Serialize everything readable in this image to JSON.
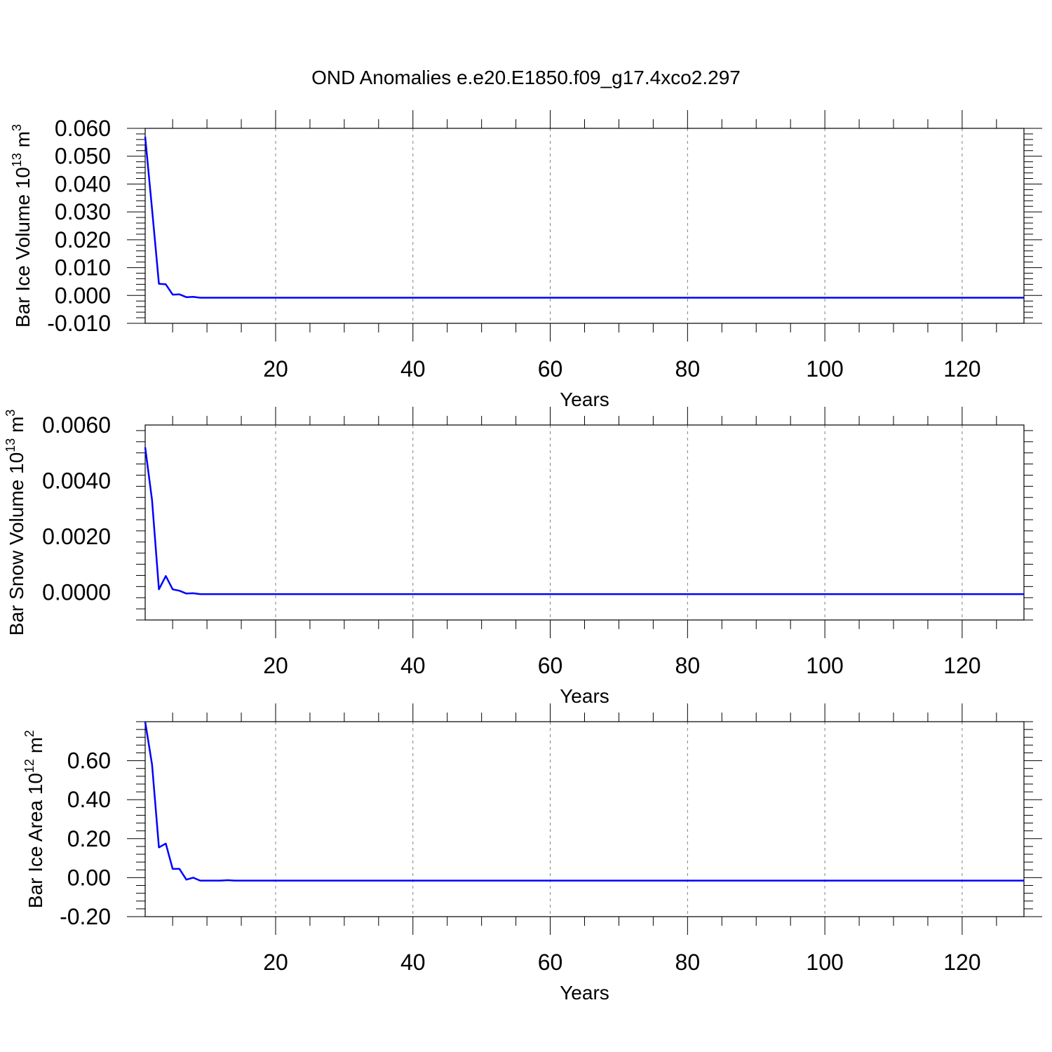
{
  "figure": {
    "title": "OND Anomalies e.e20.E1850.f09_g17.4xco2.297"
  },
  "chart_data": [
    {
      "type": "line",
      "title": "",
      "xlabel": "Years",
      "ylabel": {
        "main": "Bar Ice Volume 10",
        "sup": "13",
        "unit": " m",
        "unit_sup": "3"
      },
      "xlim": [
        1,
        129
      ],
      "ylim": [
        -0.01,
        0.06
      ],
      "xticks": [
        20,
        40,
        60,
        80,
        100,
        120
      ],
      "yticks": [
        -0.01,
        0.0,
        0.01,
        0.02,
        0.03,
        0.04,
        0.05,
        0.06
      ],
      "ytick_labels": [
        "-0.010",
        "0.000",
        "0.010",
        "0.020",
        "0.030",
        "0.040",
        "0.050",
        "0.060"
      ],
      "grid": "x-dashed",
      "color": "#0000ff",
      "series": [
        {
          "x": [
            1,
            2,
            3,
            4,
            5,
            6,
            7,
            8,
            9,
            10,
            11,
            12,
            13,
            129
          ],
          "values": [
            0.057,
            0.031,
            0.0042,
            0.004,
            0.0003,
            0.0004,
            -0.0006,
            -0.0005,
            -0.0008,
            -0.0008,
            -0.0008,
            -0.0008,
            -0.0008,
            -0.0008
          ]
        }
      ]
    },
    {
      "type": "line",
      "title": "",
      "xlabel": "Years",
      "ylabel": {
        "main": "Bar Snow Volume 10",
        "sup": "13",
        "unit": " m",
        "unit_sup": "3"
      },
      "xlim": [
        1,
        129
      ],
      "ylim": [
        -0.001,
        0.006
      ],
      "xticks": [
        20,
        40,
        60,
        80,
        100,
        120
      ],
      "yticks": [
        0.0,
        0.002,
        0.004,
        0.006
      ],
      "ytick_labels": [
        "0.0000",
        "0.0020",
        "0.0040",
        "0.0060"
      ],
      "grid": "x-dashed",
      "color": "#0000ff",
      "series": [
        {
          "x": [
            1,
            2,
            3,
            4,
            5,
            6,
            7,
            8,
            9,
            10,
            11,
            129
          ],
          "values": [
            0.0052,
            0.0033,
            0.0001,
            0.00058,
            0.0001,
            5e-05,
            -5e-05,
            -4e-05,
            -7e-05,
            -7e-05,
            -7e-05,
            -7e-05
          ]
        }
      ]
    },
    {
      "type": "line",
      "title": "",
      "xlabel": "Years",
      "ylabel": {
        "main": "Bar Ice Area 10",
        "sup": "12",
        "unit": " m",
        "unit_sup": "2"
      },
      "xlim": [
        1,
        129
      ],
      "ylim": [
        -0.2,
        0.8
      ],
      "xticks": [
        20,
        40,
        60,
        80,
        100,
        120
      ],
      "yticks": [
        -0.2,
        0.0,
        0.2,
        0.4,
        0.6
      ],
      "ytick_labels": [
        "-0.20",
        "0.00",
        "0.20",
        "0.40",
        "0.60"
      ],
      "grid": "x-dashed",
      "color": "#0000ff",
      "series": [
        {
          "x": [
            1,
            2,
            3,
            4,
            5,
            6,
            7,
            8,
            9,
            10,
            11,
            12,
            13,
            14,
            129
          ],
          "values": [
            0.8,
            0.58,
            0.155,
            0.175,
            0.045,
            0.045,
            -0.01,
            0.0,
            -0.015,
            -0.015,
            -0.015,
            -0.015,
            -0.013,
            -0.015,
            -0.015
          ]
        }
      ]
    }
  ]
}
